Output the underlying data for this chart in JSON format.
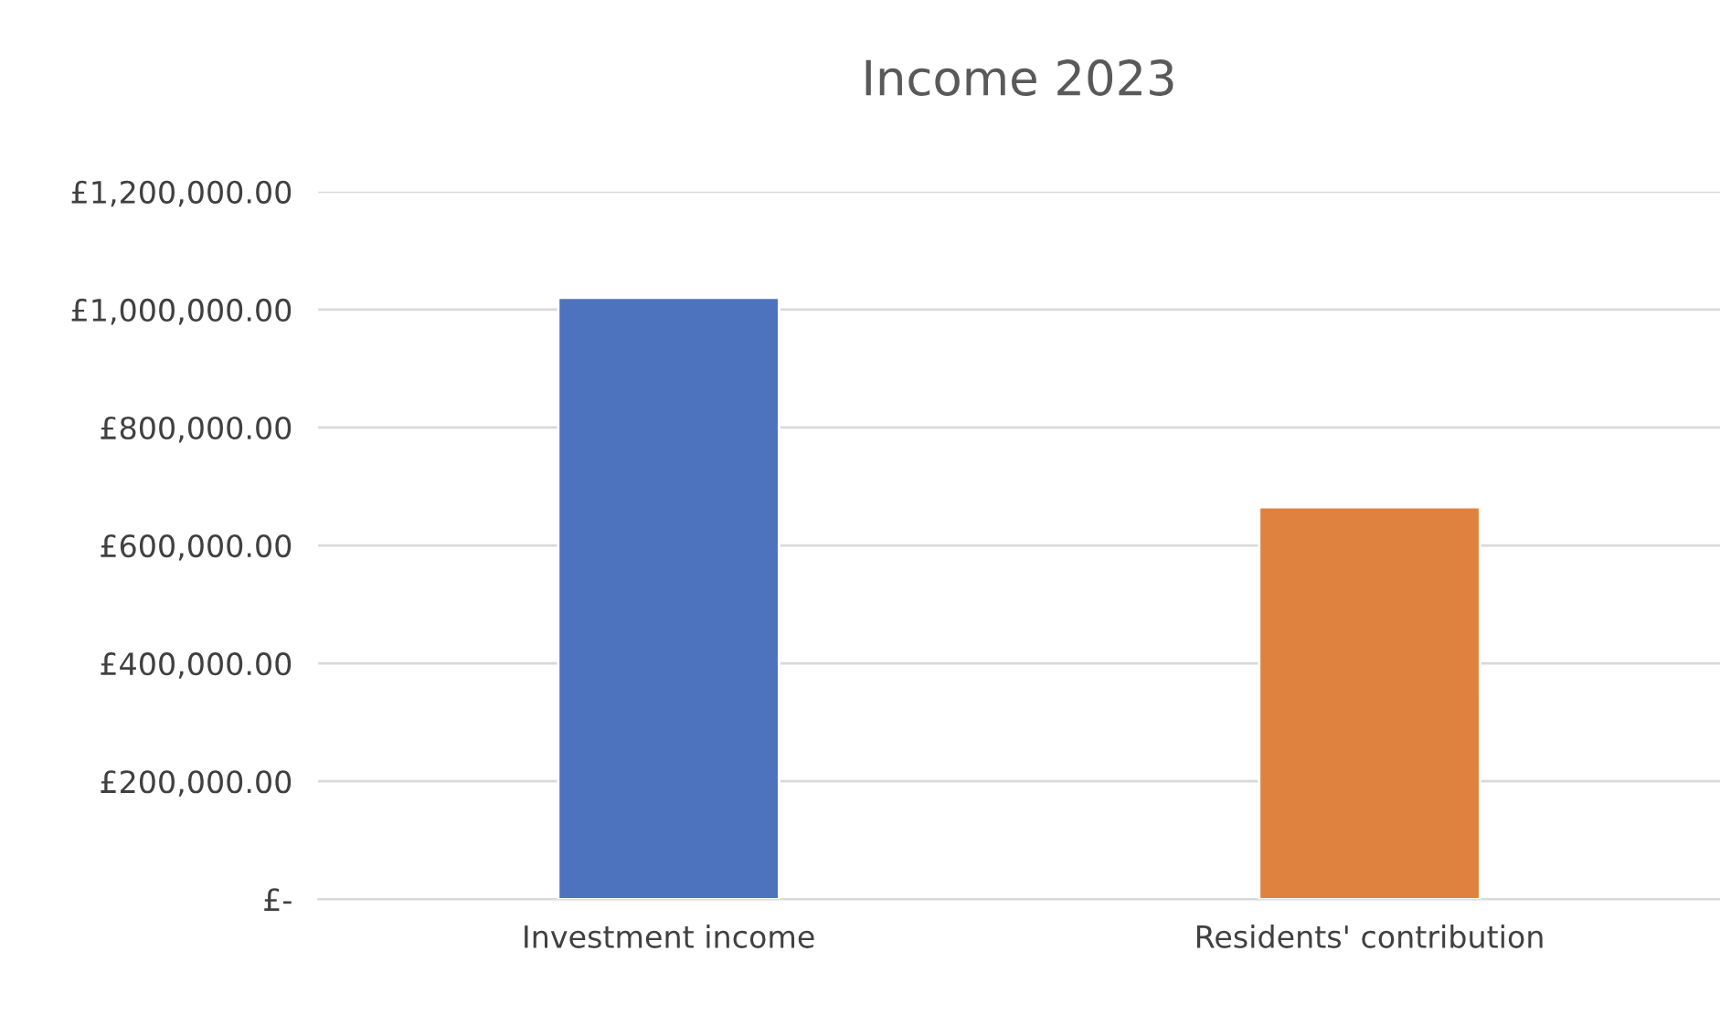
{
  "chart_data": {
    "type": "bar",
    "title": "Income 2023",
    "categories": [
      "Investment income",
      "Residents' contribution"
    ],
    "values": [
      1020000,
      665000
    ],
    "colors": [
      "#4e73be",
      "#e0823f"
    ],
    "ylim": [
      0,
      1200000
    ],
    "yticks": [
      {
        "value": 0,
        "label": "£-"
      },
      {
        "value": 200000,
        "label": "£200,000.00"
      },
      {
        "value": 400000,
        "label": "£400,000.00"
      },
      {
        "value": 600000,
        "label": "£600,000.00"
      },
      {
        "value": 800000,
        "label": "£800,000.00"
      },
      {
        "value": 1000000,
        "label": "£1,000,000.00"
      },
      {
        "value": 1200000,
        "label": "£1,200,000.00"
      }
    ],
    "grid": "y"
  }
}
